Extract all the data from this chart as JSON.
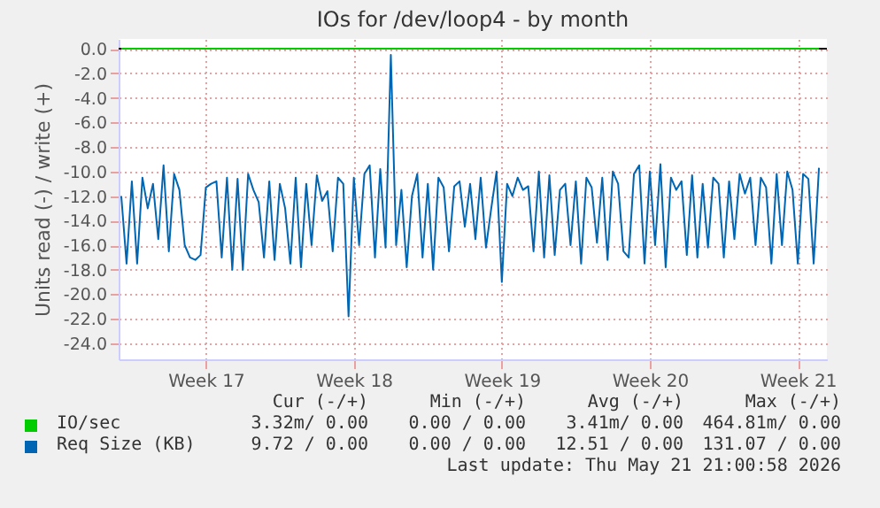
{
  "chart_data": {
    "type": "line",
    "title": "IOs for /dev/loop4 - by month",
    "ylabel": "Units read (-) / write (+)",
    "categories": [
      null,
      null,
      null,
      null,
      null,
      null,
      null,
      null,
      null,
      null,
      null,
      null,
      null,
      null,
      null,
      null,
      "Week 17",
      null,
      null,
      null,
      null,
      null,
      null,
      null,
      null,
      null,
      null,
      null,
      null,
      null,
      null,
      null,
      null,
      null,
      null,
      null,
      null,
      null,
      null,
      null,
      null,
      null,
      null,
      null,
      "Week 18",
      null,
      null,
      null,
      null,
      null,
      null,
      null,
      null,
      null,
      null,
      null,
      null,
      null,
      null,
      null,
      null,
      null,
      null,
      null,
      null,
      null,
      null,
      null,
      null,
      null,
      null,
      null,
      "Week 19",
      null,
      null,
      null,
      null,
      null,
      null,
      null,
      null,
      null,
      null,
      null,
      null,
      null,
      null,
      null,
      null,
      null,
      null,
      null,
      null,
      null,
      null,
      null,
      null,
      null,
      null,
      null,
      "Week 20",
      null,
      null,
      null,
      null,
      null,
      null,
      null,
      null,
      null,
      null,
      null,
      null,
      null,
      null,
      null,
      null,
      null,
      null,
      null,
      null,
      null,
      null,
      null,
      null,
      null,
      null,
      null,
      "Week 21",
      null,
      null,
      null,
      null
    ],
    "ylim": [
      -25.3,
      0.8
    ],
    "yticks": [
      {
        "value": 0,
        "label": "0.0"
      },
      {
        "value": -2,
        "label": "-2.0"
      },
      {
        "value": -4,
        "label": "-4.0"
      },
      {
        "value": -6,
        "label": "-6.0"
      },
      {
        "value": -8,
        "label": "-8.0"
      },
      {
        "value": -10,
        "label": "-10.0"
      },
      {
        "value": -12,
        "label": "-12.0"
      },
      {
        "value": -14,
        "label": "-14.0"
      },
      {
        "value": -16,
        "label": "-16.0"
      },
      {
        "value": -18,
        "label": "-18.0"
      },
      {
        "value": -20,
        "label": "-20.0"
      },
      {
        "value": -22,
        "label": "-22.0"
      },
      {
        "value": -24,
        "label": "-24.0"
      }
    ],
    "grid": true,
    "legend": "bottom",
    "ref_lines": [
      {
        "axis": "y",
        "value": 0,
        "color": "#000000"
      }
    ],
    "series": [
      {
        "name": "IO/sec",
        "color": "#00cc00",
        "values": [
          0,
          0,
          0,
          0,
          0,
          0,
          0,
          0,
          0,
          0,
          0,
          0,
          0,
          0,
          0,
          0,
          0,
          0,
          0,
          0,
          0,
          0,
          0,
          0,
          0,
          0,
          0,
          0,
          0,
          0,
          0,
          0,
          0,
          0,
          0,
          0,
          0,
          0,
          0,
          0,
          0,
          0,
          0,
          0,
          0,
          0,
          0,
          0,
          0,
          0,
          0,
          0,
          0,
          0,
          0,
          0,
          0,
          0,
          0,
          0,
          0,
          0,
          0,
          0,
          0,
          0,
          0,
          0,
          0,
          0,
          0,
          0,
          0,
          0,
          0,
          0,
          0,
          0,
          0,
          0,
          0,
          0,
          0,
          0,
          0,
          0,
          0,
          0,
          0,
          0,
          0,
          0,
          0,
          0,
          0,
          0,
          0,
          0,
          0,
          0,
          0,
          0,
          0,
          0,
          0,
          0,
          0,
          0,
          0,
          0,
          0,
          0,
          0,
          0,
          0,
          0,
          0,
          0,
          0,
          0,
          0,
          0,
          0,
          0,
          0,
          0,
          0,
          0,
          0,
          0,
          0,
          0,
          0
        ]
      },
      {
        "name": "Req Size (KB)",
        "color": "#0066b3",
        "values": [
          -12,
          -17.5,
          -10.8,
          -17.5,
          -10.5,
          -13,
          -11,
          -15.5,
          -9.5,
          -16.5,
          -10.2,
          -11.5,
          -16,
          -17,
          -17.2,
          -16.8,
          -11.3,
          -11,
          -10.8,
          -17,
          -10.5,
          -18,
          -10.6,
          -18,
          -10.2,
          -11.5,
          -12.5,
          -17,
          -10.8,
          -17.2,
          -11,
          -13,
          -17.5,
          -10.5,
          -17.8,
          -11,
          -16,
          -10.3,
          -12.4,
          -11.6,
          -16.5,
          -10.5,
          -11,
          -21.8,
          -10.5,
          -16,
          -10.2,
          -9.5,
          -17,
          -9.8,
          -16.2,
          -0.5,
          -16,
          -11.5,
          -17.8,
          -12,
          -10.2,
          -17,
          -11,
          -18,
          -10.5,
          -11.3,
          -16.5,
          -11.2,
          -10.8,
          -14.5,
          -11,
          -15.5,
          -10.5,
          -16.2,
          -13,
          -10,
          -19,
          -11,
          -12,
          -10.5,
          -11.5,
          -11.2,
          -16.5,
          -10,
          -17,
          -10.3,
          -16.8,
          -11.5,
          -11,
          -16,
          -10.8,
          -17.5,
          -10.5,
          -11.3,
          -15.8,
          -10.5,
          -17.2,
          -10,
          -11,
          -16.5,
          -17,
          -10.2,
          -9.5,
          -17.5,
          -10,
          -16,
          -9.4,
          -17.8,
          -10.5,
          -11.5,
          -10.8,
          -16.8,
          -10.3,
          -17,
          -11,
          -16.2,
          -10.5,
          -11,
          -17,
          -10.8,
          -15.5,
          -10.2,
          -11.8,
          -10.5,
          -16,
          -10.5,
          -11.3,
          -17.5,
          -10.2,
          -16,
          -10,
          -11.5,
          -17.5,
          -10.2,
          -10.6,
          -17.5,
          -9.7
        ]
      }
    ],
    "annotations": [
      "Cur (-/+)",
      "Min (-/+)",
      "Avg (-/+)",
      "Max (-/+)",
      "3.32m/ 0.00",
      "0.00 / 0.00",
      "3.41m/ 0.00",
      "464.81m/ 0.00",
      "9.72 / 0.00",
      "0.00 / 0.00",
      "12.51 / 0.00",
      "131.07 / 0.00",
      "Last update: Thu May 21 21:00:58 2026"
    ]
  }
}
